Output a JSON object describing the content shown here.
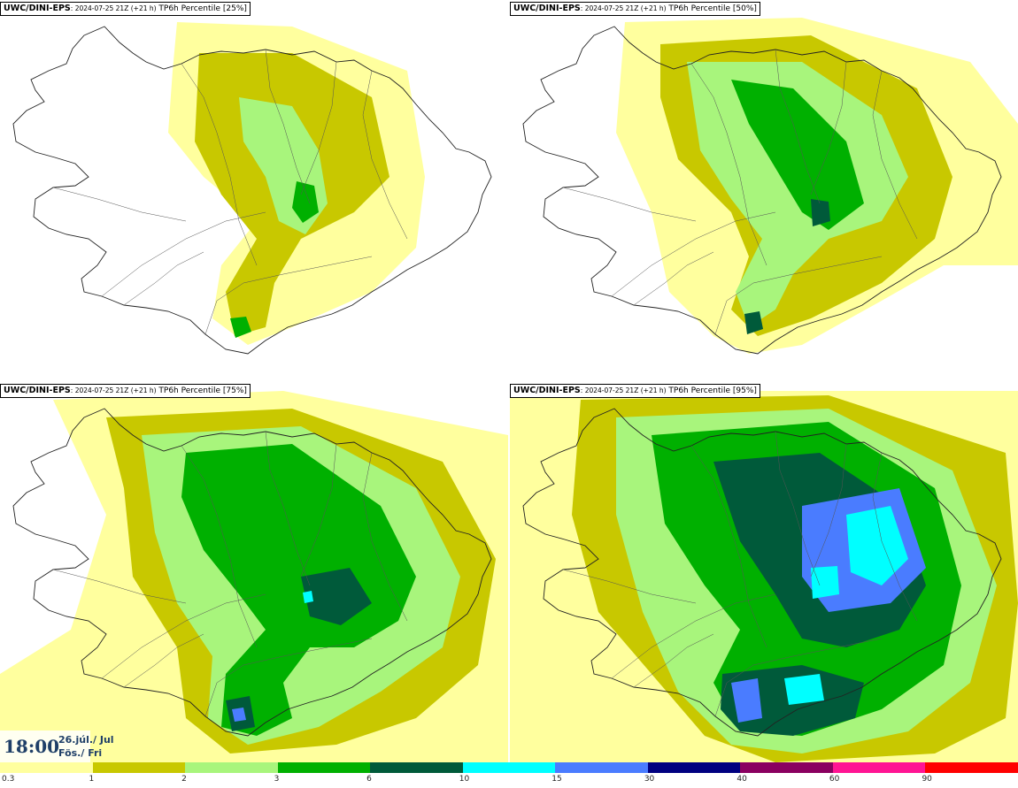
{
  "panels": [
    {
      "model": "UWC/DINI-EPS",
      "run": ": 2024-07-25 21Z (+21 h)",
      "field": " TP6h Percentile [25%]",
      "intensity": 0
    },
    {
      "model": "UWC/DINI-EPS",
      "run": ": 2024-07-25 21Z (+21 h)",
      "field": " TP6h Percentile [50%]",
      "intensity": 1
    },
    {
      "model": "UWC/DINI-EPS",
      "run": ": 2024-07-25 21Z (+21 h)",
      "field": " TP6h Percentile [75%]",
      "intensity": 2
    },
    {
      "model": "UWC/DINI-EPS",
      "run": ": 2024-07-25 21Z (+21 h)",
      "field": " TP6h Percentile [95%]",
      "intensity": 3
    }
  ],
  "valid_time": {
    "time": "18:00",
    "date_line1": "26.júl./ Jul",
    "date_line2": "Fös./ Fri"
  },
  "legend": {
    "ticks": [
      "0.3",
      "1",
      "2",
      "3",
      "6",
      "10",
      "15",
      "30",
      "40",
      "60",
      "90"
    ],
    "colors": [
      "#ffff9e",
      "#c8c800",
      "#a8f57c",
      "#00b000",
      "#005a3a",
      "#00ffff",
      "#4a7cff",
      "#000080",
      "#8a0060",
      "#ff1493",
      "#ff0000"
    ]
  }
}
